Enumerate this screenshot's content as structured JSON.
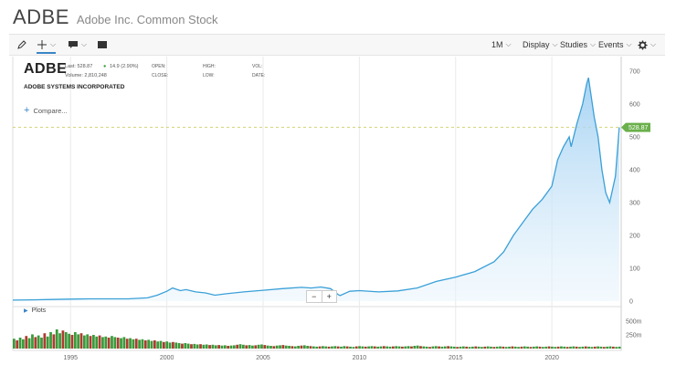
{
  "header": {
    "symbol": "ADBE",
    "company_name": "Adobe Inc. Common Stock"
  },
  "toolbar": {
    "draw_icon": "pencil-icon",
    "crosshair_icon": "crosshair-icon",
    "comment_icon": "comment-icon",
    "screen_icon": "screen-icon",
    "interval": "1M",
    "display": "Display",
    "studies": "Studies",
    "events": "Events",
    "settings_icon": "gear-icon"
  },
  "quote": {
    "symbol": "ADBE",
    "last_label": "Last: 528.87",
    "change": "14.9 (2.90%)",
    "volume_label": "Volume: 2,810,248",
    "company": "ADOBE SYSTEMS INCORPORATED",
    "open_label": "OPEN:",
    "close_label": "CLOSE:",
    "high_label": "HIGH:",
    "low_label": "LOW:",
    "vol_label": "VOL:",
    "date_label": "DATE:"
  },
  "compare_label": "Compare...",
  "plots_label": "Plots",
  "zoom": {
    "minus": "−",
    "plus": "+"
  },
  "colors": {
    "line": "#3aa0d8",
    "fill": "#bfe0f7",
    "price_tag": "#6ab04c",
    "up": "#3a9a3a",
    "down": "#b03a30"
  },
  "chart_data": {
    "type": "area",
    "x_ticks": [
      "1995",
      "2000",
      "2005",
      "2010",
      "2015",
      "2020"
    ],
    "y_ticks": [
      "0",
      "100",
      "200",
      "300",
      "400",
      "500",
      "600",
      "700"
    ],
    "volume_ticks": [
      "500m",
      "250m"
    ],
    "last_price": "528.87",
    "xlim": [
      1992,
      2023.6
    ],
    "ylim": [
      0,
      700
    ],
    "x": [
      1992,
      1993,
      1994,
      1995,
      1996,
      1997,
      1998,
      1999,
      1999.5,
      2000,
      2000.3,
      2000.7,
      2001,
      2001.5,
      2002,
      2002.5,
      2003,
      2004,
      2005,
      2006,
      2007,
      2007.5,
      2008,
      2008.5,
      2008.9,
      2009,
      2009.5,
      2010,
      2011,
      2012,
      2013,
      2014,
      2015,
      2016,
      2017,
      2017.5,
      2018,
      2018.5,
      2019,
      2019.5,
      2020,
      2020.3,
      2020.6,
      2020.9,
      2021,
      2021.3,
      2021.6,
      2021.8,
      2021.9,
      2022,
      2022.2,
      2022.4,
      2022.6,
      2022.8,
      2023,
      2023.3,
      2023.5
    ],
    "y": [
      3,
      4,
      5,
      6,
      7,
      7,
      7,
      10,
      18,
      30,
      40,
      32,
      35,
      28,
      25,
      18,
      22,
      28,
      33,
      38,
      42,
      40,
      43,
      38,
      20,
      17,
      30,
      32,
      28,
      31,
      40,
      60,
      73,
      90,
      120,
      150,
      200,
      240,
      280,
      310,
      350,
      430,
      470,
      500,
      470,
      540,
      600,
      660,
      680,
      640,
      560,
      500,
      400,
      330,
      300,
      380,
      528.87
    ],
    "volume_series": [
      180,
      150,
      200,
      170,
      230,
      190,
      260,
      210,
      240,
      200,
      280,
      220,
      300,
      260,
      350,
      280,
      330,
      300,
      270,
      250,
      300,
      260,
      280,
      240,
      260,
      230,
      250,
      220,
      240,
      210,
      220,
      200,
      230,
      210,
      200,
      190,
      210,
      180,
      190,
      170,
      180,
      160,
      170,
      150,
      160,
      140,
      150,
      130,
      140,
      120,
      130,
      110,
      120,
      110,
      100,
      90,
      100,
      90,
      80,
      85,
      75,
      80,
      70,
      75,
      65,
      70,
      60,
      65,
      55,
      60,
      50,
      55,
      60,
      70,
      80,
      70,
      60,
      65,
      55,
      60,
      70,
      75,
      65,
      55,
      50,
      45,
      55,
      60,
      65,
      55,
      50,
      45,
      40,
      50,
      55,
      60,
      50,
      45,
      40,
      35,
      40,
      45,
      40,
      35,
      40,
      45,
      40,
      35,
      45,
      40,
      35,
      30,
      40,
      45,
      40,
      35,
      40,
      45,
      40,
      35,
      40,
      45,
      40,
      35,
      40,
      45,
      40,
      35,
      40,
      45,
      40,
      50,
      55,
      45,
      40,
      35,
      30,
      40,
      45,
      40,
      35,
      40,
      45,
      40,
      35,
      30,
      35,
      40,
      35,
      30,
      35,
      40,
      35,
      30,
      35,
      40,
      35,
      30,
      35,
      40,
      35,
      30,
      35,
      40,
      35,
      30,
      35,
      40,
      35,
      30,
      35,
      40,
      35,
      30,
      35,
      40,
      35,
      30,
      35,
      40,
      35,
      30,
      35,
      40,
      35,
      30,
      35,
      40,
      35,
      30,
      35,
      40,
      35,
      30,
      35,
      40,
      35,
      30,
      35
    ],
    "volume_ylim": [
      0,
      700
    ],
    "grid": true
  }
}
